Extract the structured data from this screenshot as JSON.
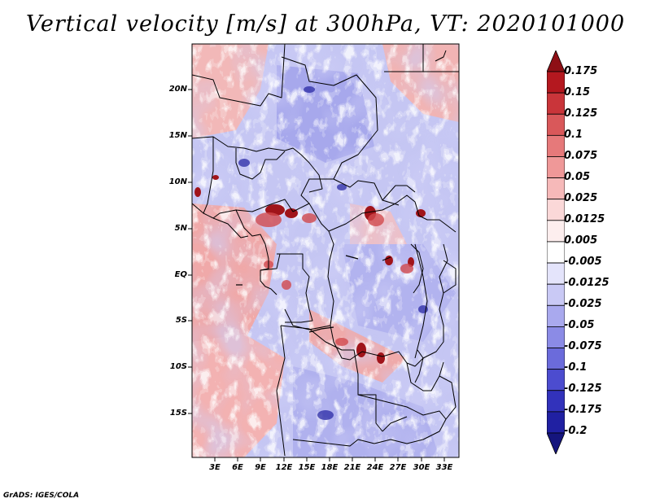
{
  "title": "Vertical velocity [m/s] at 300hPa, VT: 2020101000",
  "footer": "GrADS: IGES/COLA",
  "lat_labels": [
    "20N",
    "15N",
    "10N",
    "5N",
    "EQ",
    "5S",
    "10S",
    "15S"
  ],
  "lon_labels": [
    "3E",
    "6E",
    "9E",
    "12E",
    "15E",
    "18E",
    "21E",
    "24E",
    "27E",
    "30E",
    "33E"
  ],
  "colorbar": {
    "labels": [
      "0.175",
      "0.15",
      "0.125",
      "0.1",
      "0.075",
      "0.05",
      "0.025",
      "0.0125",
      "0.005",
      "-0.005",
      "-0.0125",
      "-0.025",
      "-0.05",
      "-0.075",
      "-0.1",
      "-0.125",
      "-0.175",
      "-0.2"
    ],
    "colors": [
      "#8e0f15",
      "#b4181f",
      "#c9353a",
      "#d9585a",
      "#e6797a",
      "#ef9898",
      "#f6b9b9",
      "#fbd8d8",
      "#fdeeee",
      "#ffffff",
      "#e4e4fb",
      "#c9c9f5",
      "#a9a9ee",
      "#8b8be6",
      "#6b6bdb",
      "#4c4ccf",
      "#3232bb",
      "#2020a2",
      "#15157d"
    ]
  }
}
